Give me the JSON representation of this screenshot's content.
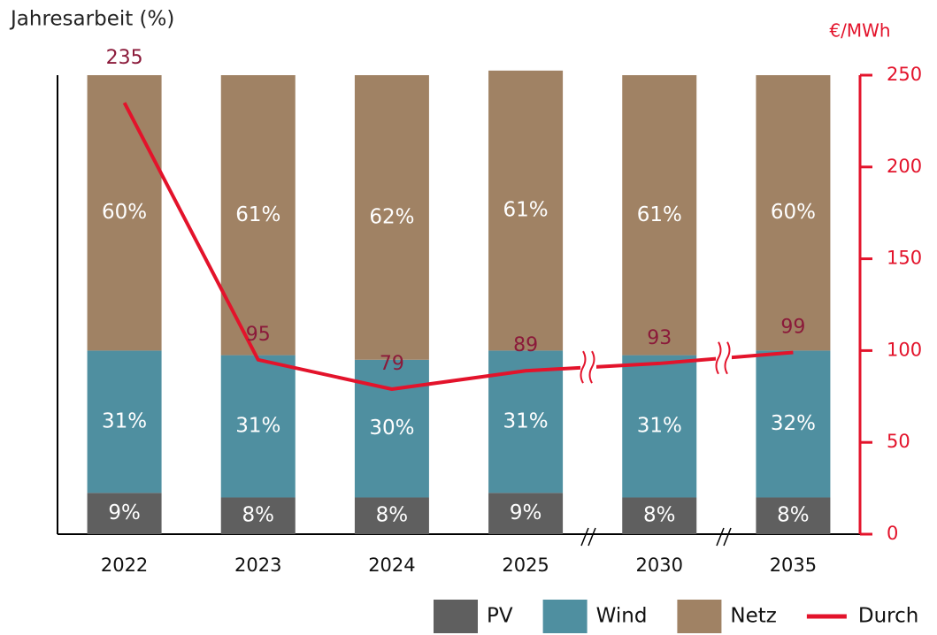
{
  "chart_data": {
    "type": "bar",
    "stacked": true,
    "y_label": "Jahresarbeit (%)",
    "y2_label": "€/MWh",
    "categories": [
      "2022",
      "2023",
      "2024",
      "2025",
      "2030",
      "2035"
    ],
    "series": [
      {
        "name": "PV",
        "color": "#5f5f5f",
        "values": [
          9,
          8,
          8,
          9,
          8,
          8
        ],
        "value_labels": [
          "9%",
          "8%",
          "8%",
          "9%",
          "8%",
          "8%"
        ]
      },
      {
        "name": "Wind",
        "color": "#4f8fa0",
        "values": [
          31,
          31,
          30,
          31,
          31,
          32
        ],
        "value_labels": [
          "31%",
          "31%",
          "30%",
          "31%",
          "31%",
          "32%"
        ]
      },
      {
        "name": "Netz",
        "color": "#a08264",
        "values": [
          60,
          61,
          62,
          61,
          61,
          60
        ],
        "value_labels": [
          "60%",
          "61%",
          "62%",
          "61%",
          "61%",
          "60%"
        ]
      },
      {
        "name": "Durch",
        "type": "line",
        "axis": "y2",
        "color": "#e3132b",
        "label_color": "#8b1a3a",
        "values": [
          235,
          95,
          79,
          89,
          93,
          99
        ]
      }
    ],
    "ylim": [
      0,
      100
    ],
    "y2lim": [
      0,
      250
    ],
    "y2ticks": [
      0,
      50,
      100,
      150,
      200,
      250
    ],
    "legend": "bottom"
  }
}
